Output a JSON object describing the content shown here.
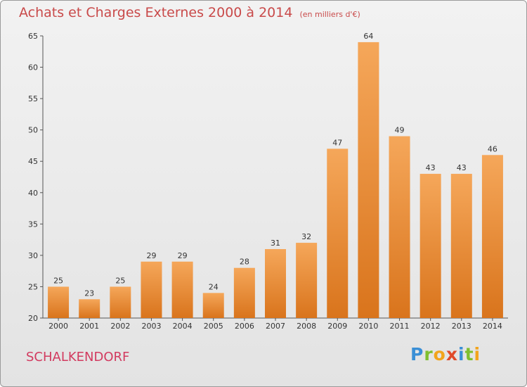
{
  "title": "Achats et Charges Externes 2000 à 2014",
  "subtitle": "(en milliers d'€)",
  "commune": "SCHALKENDORF",
  "logo": "Proxiti",
  "colors": {
    "bar_top": "#f5a75a",
    "bar_bottom": "#d9741c",
    "title": "#c94a4a",
    "commune": "#d23a5f"
  },
  "chart_data": {
    "type": "bar",
    "categories": [
      "2000",
      "2001",
      "2002",
      "2003",
      "2004",
      "2005",
      "2006",
      "2007",
      "2008",
      "2009",
      "2010",
      "2011",
      "2012",
      "2013",
      "2014"
    ],
    "values": [
      25,
      23,
      25,
      29,
      29,
      24,
      28,
      31,
      32,
      47,
      64,
      49,
      43,
      43,
      46
    ],
    "ylim": [
      20,
      65
    ],
    "yticks": [
      20,
      25,
      30,
      35,
      40,
      45,
      50,
      55,
      60,
      65
    ],
    "grid": false,
    "data_labels": true
  }
}
